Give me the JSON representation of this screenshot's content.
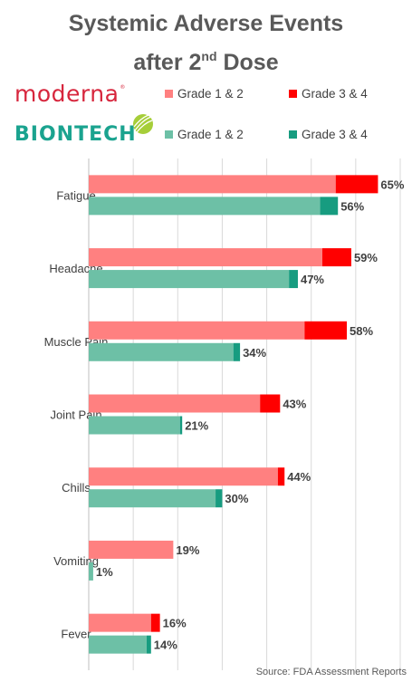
{
  "title_line1": "Systemic Adverse Events",
  "title_line2_pre": "after 2",
  "title_line2_sup": "nd",
  "title_line2_post": " Dose",
  "brands": {
    "moderna": "moderna",
    "moderna_mark": "®",
    "biontech": "BIONTECH"
  },
  "legend": [
    {
      "label": "Grade 1 & 2",
      "color": "#ff8080"
    },
    {
      "label": "Grade 3 & 4",
      "color": "#ff0000"
    },
    {
      "label": "Grade 1 & 2",
      "color": "#6dc0a6"
    },
    {
      "label": "Grade 3 & 4",
      "color": "#179c80"
    }
  ],
  "source": "Source: FDA Assessment Reports",
  "chart_data": {
    "type": "bar",
    "orientation": "horizontal",
    "stacked": true,
    "grid": true,
    "xlim": [
      0,
      70
    ],
    "categories": [
      "Fatigue",
      "Headache",
      "Muscle Pain",
      "Joint Pain",
      "Chills",
      "Vomiting",
      "Fever"
    ],
    "groups": [
      {
        "brand": "moderna",
        "colors": [
          "#ff8080",
          "#ff0000"
        ],
        "series": [
          {
            "name": "Grade 1 & 2",
            "values": [
              55.5,
              52.5,
              48.5,
              38.5,
              42.5,
              19,
              14
            ]
          },
          {
            "name": "Grade 3 & 4",
            "values": [
              9.5,
              6.5,
              9.5,
              4.5,
              1.5,
              0,
              2
            ]
          }
        ],
        "labels": [
          "65%",
          "59%",
          "58%",
          "43%",
          "44%",
          "19%",
          "16%"
        ]
      },
      {
        "brand": "biontech",
        "colors": [
          "#6dc0a6",
          "#179c80"
        ],
        "series": [
          {
            "name": "Grade 1 & 2",
            "values": [
              52,
              45,
              32.5,
              20.5,
              28.5,
              1,
              13
            ]
          },
          {
            "name": "Grade 3 & 4",
            "values": [
              4,
              2,
              1.5,
              0.5,
              1.5,
              0,
              1
            ]
          }
        ],
        "labels": [
          "56%",
          "47%",
          "34%",
          "21%",
          "30%",
          "1%",
          "14%"
        ]
      }
    ]
  }
}
